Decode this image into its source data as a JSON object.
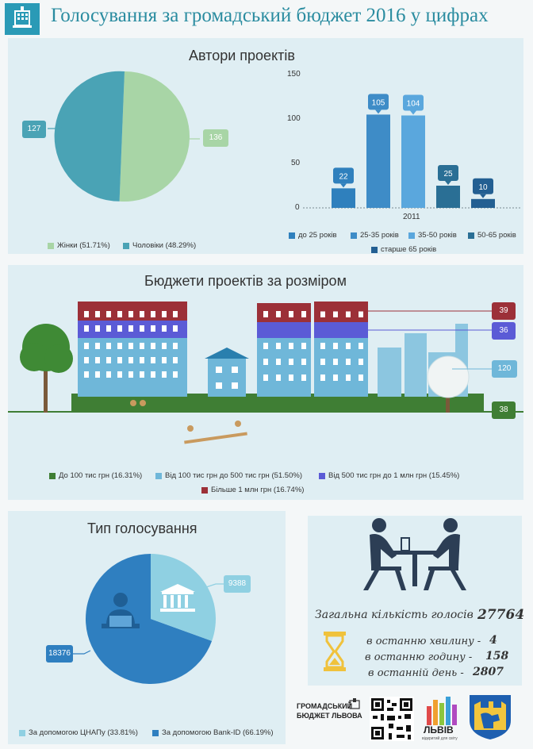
{
  "header": {
    "title": "Голосування за громадський бюджет 2016 у цифрах",
    "icon": "ballot-box-icon"
  },
  "authors": {
    "title": "Автори проектів",
    "pie": {
      "women_value": "136",
      "men_value": "127",
      "legend": [
        "Жінки (51.71%)",
        "Чоловіки (48.29%)"
      ],
      "colors": [
        "#a8d5a6",
        "#4aa3b5"
      ]
    },
    "bars": {
      "yticks": [
        "150",
        "100",
        "50",
        "0"
      ],
      "category": "2011",
      "values": [
        "22",
        "105",
        "104",
        "25",
        "10"
      ],
      "legend": [
        "до 25 років",
        "25-35 років",
        "35-50 років",
        "50-65 років",
        "старше 65 років"
      ],
      "colors": [
        "#2f80bd",
        "#3e8cc7",
        "#5aa7dd",
        "#2a6f95",
        "#235f92"
      ]
    }
  },
  "budgets": {
    "title": "Бюджети проектів за розміром",
    "values": [
      "39",
      "36",
      "120",
      "38"
    ],
    "legend": [
      "До 100 тис грн (16.31%)",
      "Від 100 тис грн до 500 тис грн (51.50%)",
      "Від 500 тис грн до 1 млн грн (15.45%)",
      "Більше 1 млн грн (16.74%)"
    ],
    "colors": [
      "#3f7e34",
      "#6fb7d9",
      "#5b5bd6",
      "#9c3038"
    ]
  },
  "voting": {
    "title": "Тип голосування",
    "cnap_value": "9388",
    "bankid_value": "18376",
    "legend": [
      "За допомогою ЦНАПу (33.81%)",
      "За допомогою Bank-ID (66.19%)"
    ],
    "colors": [
      "#8fd0e2",
      "#2f7fc0"
    ]
  },
  "totals": {
    "total_label": "Загальна кількість голосів",
    "total_value": "27764",
    "last_minute_label": "в останню хвилину -",
    "last_minute_value": "4",
    "last_hour_label": "в останню годину -",
    "last_hour_value": "158",
    "last_day_label": "в останній день -",
    "last_day_value": "2807"
  },
  "footer": {
    "logo_text_1": "ГРОМАДСЬКИЙ",
    "logo_text_2": "БЮДЖЕТ ЛЬВОВА",
    "lviv_text": "ЛЬВІВ",
    "lviv_sub": "відкритий для світу"
  },
  "chart_data": [
    {
      "type": "pie",
      "title": "Автори проектів",
      "labels": [
        "Жінки",
        "Чоловіки"
      ],
      "values": [
        136,
        127
      ],
      "percent": [
        51.71,
        48.29
      ],
      "legend_position": "bottom"
    },
    {
      "type": "bar",
      "categories": [
        "2011"
      ],
      "series": [
        {
          "name": "до 25 років",
          "values": [
            22
          ]
        },
        {
          "name": "25-35 років",
          "values": [
            105
          ]
        },
        {
          "name": "35-50 років",
          "values": [
            104
          ]
        },
        {
          "name": "50-65 років",
          "values": [
            25
          ]
        },
        {
          "name": "старше 65 років",
          "values": [
            10
          ]
        }
      ],
      "ylim": [
        0,
        150
      ],
      "yticks": [
        0,
        50,
        100,
        150
      ],
      "legend_position": "bottom"
    },
    {
      "type": "bar",
      "title": "Бюджети проектів за розміром",
      "categories": [
        "Більше 1 млн грн",
        "Від 500 тис грн до 1 млн грн",
        "Від 100 тис грн до 500 тис грн",
        "До 100 тис грн"
      ],
      "values": [
        39,
        36,
        120,
        38
      ],
      "percent": [
        16.74,
        15.45,
        51.5,
        16.31
      ]
    },
    {
      "type": "pie",
      "title": "Тип голосування",
      "labels": [
        "За допомогою ЦНАПу",
        "За допомогою Bank-ID"
      ],
      "values": [
        9388,
        18376
      ],
      "percent": [
        33.81,
        66.19
      ],
      "legend_position": "bottom"
    }
  ]
}
